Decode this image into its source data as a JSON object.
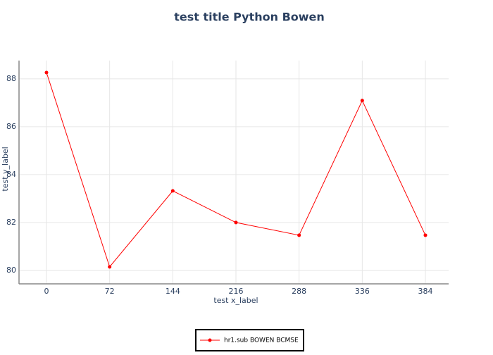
{
  "chart_data": {
    "type": "line",
    "title": "test title Python Bowen",
    "x_label": "test x_label",
    "y_label": "test y_label",
    "categories": [
      "0",
      "72",
      "144",
      "216",
      "288",
      "336",
      "384"
    ],
    "series": [
      {
        "name": "hr1.sub BOWEN BCMSE",
        "color": "#ff0000",
        "values": [
          88.26,
          80.15,
          83.32,
          82.0,
          81.47,
          87.09,
          81.47
        ]
      }
    ],
    "ylim": [
      79.44,
      88.76
    ],
    "yticks": [
      80,
      82,
      84,
      86,
      88
    ],
    "grid": true,
    "legend": "bottom"
  }
}
